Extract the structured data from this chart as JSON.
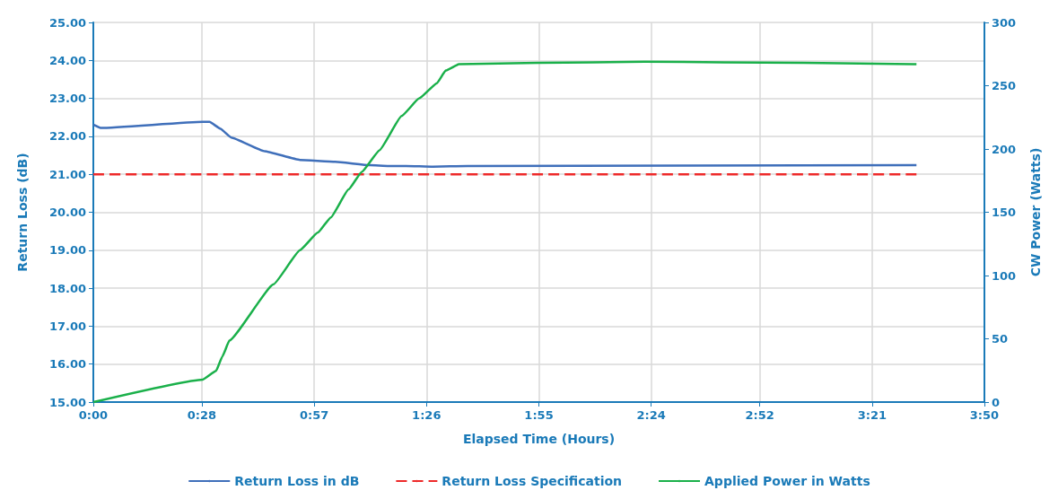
{
  "chart_data": {
    "type": "line",
    "xlabel": "Elapsed Time (Hours)",
    "ylabel": "Return Loss (dB)",
    "y2label": "CW Power (Watts)",
    "xlim": [
      0,
      3.8333
    ],
    "xticks": [
      {
        "value": 0,
        "label": "0:00"
      },
      {
        "value": 0.4667,
        "label": "0:28"
      },
      {
        "value": 0.95,
        "label": "0:57"
      },
      {
        "value": 1.4333,
        "label": "1:26"
      },
      {
        "value": 1.9167,
        "label": "1:55"
      },
      {
        "value": 2.4,
        "label": "2:24"
      },
      {
        "value": 2.8667,
        "label": "2:52"
      },
      {
        "value": 3.35,
        "label": "3:21"
      },
      {
        "value": 3.8333,
        "label": "3:50"
      }
    ],
    "ylim": [
      15,
      25
    ],
    "yticks": [
      {
        "value": 15,
        "label": "15.00"
      },
      {
        "value": 16,
        "label": "16.00"
      },
      {
        "value": 17,
        "label": "17.00"
      },
      {
        "value": 18,
        "label": "18.00"
      },
      {
        "value": 19,
        "label": "19.00"
      },
      {
        "value": 20,
        "label": "20.00"
      },
      {
        "value": 21,
        "label": "21.00"
      },
      {
        "value": 22,
        "label": "22.00"
      },
      {
        "value": 23,
        "label": "23.00"
      },
      {
        "value": 24,
        "label": "24.00"
      },
      {
        "value": 25,
        "label": "25.00"
      }
    ],
    "y2lim": [
      0,
      300
    ],
    "y2ticks": [
      0,
      50,
      100,
      150,
      200,
      250,
      300
    ],
    "grid": true,
    "legend": "bottom",
    "marker": "none",
    "series": [
      {
        "name": "Return Loss in dB",
        "color": "#3f6fba",
        "line_style": "solid",
        "x": [
          0,
          0.034,
          0.471,
          0.5,
          0.547,
          0.593,
          0.737,
          0.889,
          1.04,
          1.19,
          1.27,
          1.345,
          1.46,
          1.61,
          3.541
        ],
        "values": [
          22.31,
          22.22,
          22.38,
          22.38,
          22.2,
          21.97,
          21.61,
          21.38,
          21.33,
          21.24,
          21.22,
          21.22,
          21.2,
          21.22,
          21.24
        ]
      },
      {
        "name": "Return Loss Specification",
        "color": "#ee2a2a",
        "line_style": "dashed",
        "x": [
          0,
          3.541
        ],
        "values": [
          21,
          21
        ]
      },
      {
        "name": "Applied Power in Watts",
        "color": "#1ab04a",
        "line_style": "solid",
        "axis": "y2",
        "x": [
          0,
          0.471,
          0.528,
          0.555,
          0.585,
          0.775,
          0.889,
          0.966,
          1.022,
          1.098,
          1.155,
          1.231,
          1.326,
          1.402,
          1.478,
          1.516,
          1.573,
          1.915,
          2.371,
          3.055,
          3.541
        ],
        "values": [
          0,
          17.8,
          24.6,
          36,
          48.5,
          93,
          120,
          134,
          146,
          168,
          182,
          199,
          226,
          240,
          252,
          262,
          267,
          268,
          269,
          268,
          267
        ]
      }
    ]
  }
}
